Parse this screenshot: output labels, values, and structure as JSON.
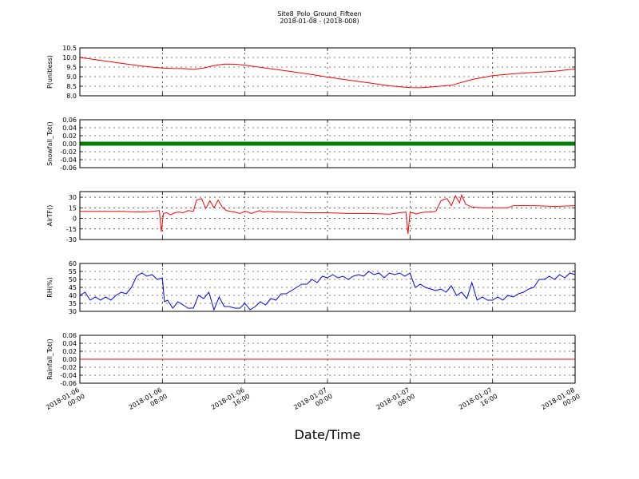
{
  "chart_data": {
    "type": "line",
    "title": "Site8_Polo_Ground_Fifteen",
    "subtitle": "2018-01-08 - (2018-008)",
    "xlabel": "Date/Time",
    "x_ticks": [
      {
        "l1": "2018-01-06",
        "l2": "00:00",
        "h": 0
      },
      {
        "l1": "2018-01-06",
        "l2": "08:00",
        "h": 8
      },
      {
        "l1": "2018-01-06",
        "l2": "16:00",
        "h": 16
      },
      {
        "l1": "2018-01-07",
        "l2": "00:00",
        "h": 24
      },
      {
        "l1": "2018-01-07",
        "l2": "08:00",
        "h": 32
      },
      {
        "l1": "2018-01-07",
        "l2": "16:00",
        "h": 40
      },
      {
        "l1": "2018-01-08",
        "l2": "00:00",
        "h": 48
      }
    ],
    "panels": [
      {
        "ylabel": "P(unitless)",
        "ylim": [
          8.0,
          10.5
        ],
        "yticks": [
          "8.0",
          "8.5",
          "9.0",
          "9.5",
          "10.0",
          "10.5"
        ],
        "color": "#ff0000",
        "x": [
          0,
          2,
          4,
          6,
          8,
          9,
          10,
          11,
          12,
          13,
          14,
          15,
          16,
          18,
          20,
          22,
          24,
          26,
          28,
          30,
          32,
          33,
          34,
          36,
          38,
          40,
          42,
          44,
          46,
          48
        ],
        "y": [
          10.0,
          9.85,
          9.7,
          9.55,
          9.45,
          9.43,
          9.42,
          9.38,
          9.45,
          9.58,
          9.66,
          9.65,
          9.6,
          9.45,
          9.3,
          9.15,
          8.98,
          8.82,
          8.68,
          8.52,
          8.43,
          8.42,
          8.46,
          8.55,
          8.85,
          9.05,
          9.15,
          9.22,
          9.28,
          9.4
        ]
      },
      {
        "ylabel": "Snowfall_Tot()",
        "ylim": [
          -0.06,
          0.06
        ],
        "yticks": [
          "-0.06",
          "-0.04",
          "-0.02",
          "0.00",
          "0.02",
          "0.04",
          "0.06"
        ],
        "color": "#008000",
        "marker": true,
        "x": [
          0,
          48
        ],
        "y": [
          0,
          0
        ]
      },
      {
        "ylabel": "AirTF()",
        "ylim": [
          -30,
          38
        ],
        "yticks": [
          "-30",
          "-15",
          "0",
          "15",
          "30"
        ],
        "color": "#ff0000",
        "x": [
          0,
          2,
          4,
          6,
          7,
          7.7,
          7.9,
          8.1,
          8.4,
          8.8,
          9.2,
          9.6,
          10,
          10.5,
          11,
          11.3,
          11.8,
          12.2,
          12.6,
          13,
          13.4,
          13.8,
          14.2,
          15,
          15.5,
          16,
          16.3,
          16.6,
          17,
          17.4,
          17.8,
          18.2,
          19,
          20,
          22,
          24,
          26,
          28,
          30,
          31,
          31.6,
          31.8,
          32,
          32.3,
          32.6,
          33,
          33.5,
          34,
          34.5,
          35,
          35.3,
          35.6,
          36,
          36.4,
          36.8,
          37,
          37.4,
          38,
          39,
          40,
          41,
          41.5,
          42,
          44,
          46,
          48
        ],
        "y": [
          10,
          10,
          10,
          9,
          10,
          11,
          -19,
          7,
          8,
          5,
          8,
          9,
          8,
          11,
          10,
          26,
          28,
          14,
          25,
          15,
          26,
          16,
          11,
          9,
          7,
          10,
          9,
          7,
          9,
          11,
          9,
          10,
          9,
          9,
          8,
          8,
          7,
          7,
          6,
          8,
          9,
          -22,
          8,
          8,
          6,
          8,
          9,
          9,
          10,
          25,
          27,
          28,
          18,
          32,
          22,
          33,
          20,
          16,
          15,
          15,
          15,
          15,
          18,
          18,
          17,
          18
        ]
      },
      {
        "ylabel": "RH(%)",
        "ylim": [
          30,
          60
        ],
        "yticks": [
          "30",
          "35",
          "40",
          "45",
          "50",
          "55",
          "60"
        ],
        "color": "#0000ff",
        "x": [
          0,
          0.5,
          1,
          1.5,
          2,
          2.5,
          3,
          3.5,
          4,
          4.5,
          5,
          5.5,
          6,
          6.5,
          7,
          7.5,
          8,
          8.2,
          8.5,
          9,
          9.5,
          10,
          10.5,
          11,
          11.5,
          12,
          12.5,
          13,
          13.5,
          14,
          14.5,
          15,
          15.5,
          16,
          16.5,
          17,
          17.5,
          18,
          18.5,
          19,
          19.5,
          20,
          21,
          21.5,
          22,
          22.5,
          23,
          23.5,
          24,
          24.5,
          25,
          25.5,
          26,
          26.5,
          27,
          27.5,
          28,
          28.5,
          29,
          29.5,
          30,
          30.5,
          31,
          31.5,
          32,
          32.5,
          33,
          33.5,
          34,
          34.5,
          35,
          35.5,
          36,
          36.5,
          37,
          37.5,
          38,
          38.5,
          39,
          39.5,
          40,
          40.5,
          41,
          41.5,
          42,
          42.5,
          43,
          43.5,
          44,
          44.5,
          45,
          45.5,
          46,
          46.5,
          47,
          47.5,
          48
        ],
        "y": [
          40,
          42,
          37,
          39,
          37,
          39,
          37,
          40,
          42,
          41,
          45,
          52,
          54,
          52,
          53,
          50,
          51,
          36,
          37,
          32,
          36,
          34,
          32,
          32,
          40,
          38,
          42,
          31,
          39,
          33,
          33,
          32,
          32,
          35,
          31,
          33,
          36,
          34,
          38,
          37,
          41,
          41,
          45,
          47,
          47,
          50,
          48,
          52,
          51,
          53,
          51,
          52,
          50,
          52,
          53,
          52,
          55,
          53,
          54,
          51,
          54,
          53,
          54,
          52,
          54,
          45,
          47,
          45,
          44,
          43,
          44,
          42,
          46,
          40,
          42,
          38,
          48,
          37,
          39,
          37,
          37,
          39,
          37,
          40,
          39,
          41,
          42,
          44,
          45,
          50,
          50,
          52,
          50,
          53,
          51,
          54,
          53
        ]
      },
      {
        "ylabel": "Rainfall_Tot()",
        "ylim": [
          -0.06,
          0.06
        ],
        "yticks": [
          "-0.06",
          "-0.04",
          "-0.02",
          "0.00",
          "0.02",
          "0.04",
          "0.06"
        ],
        "color": "#ff0000",
        "x": [
          0,
          48
        ],
        "y": [
          0,
          0
        ]
      }
    ]
  }
}
